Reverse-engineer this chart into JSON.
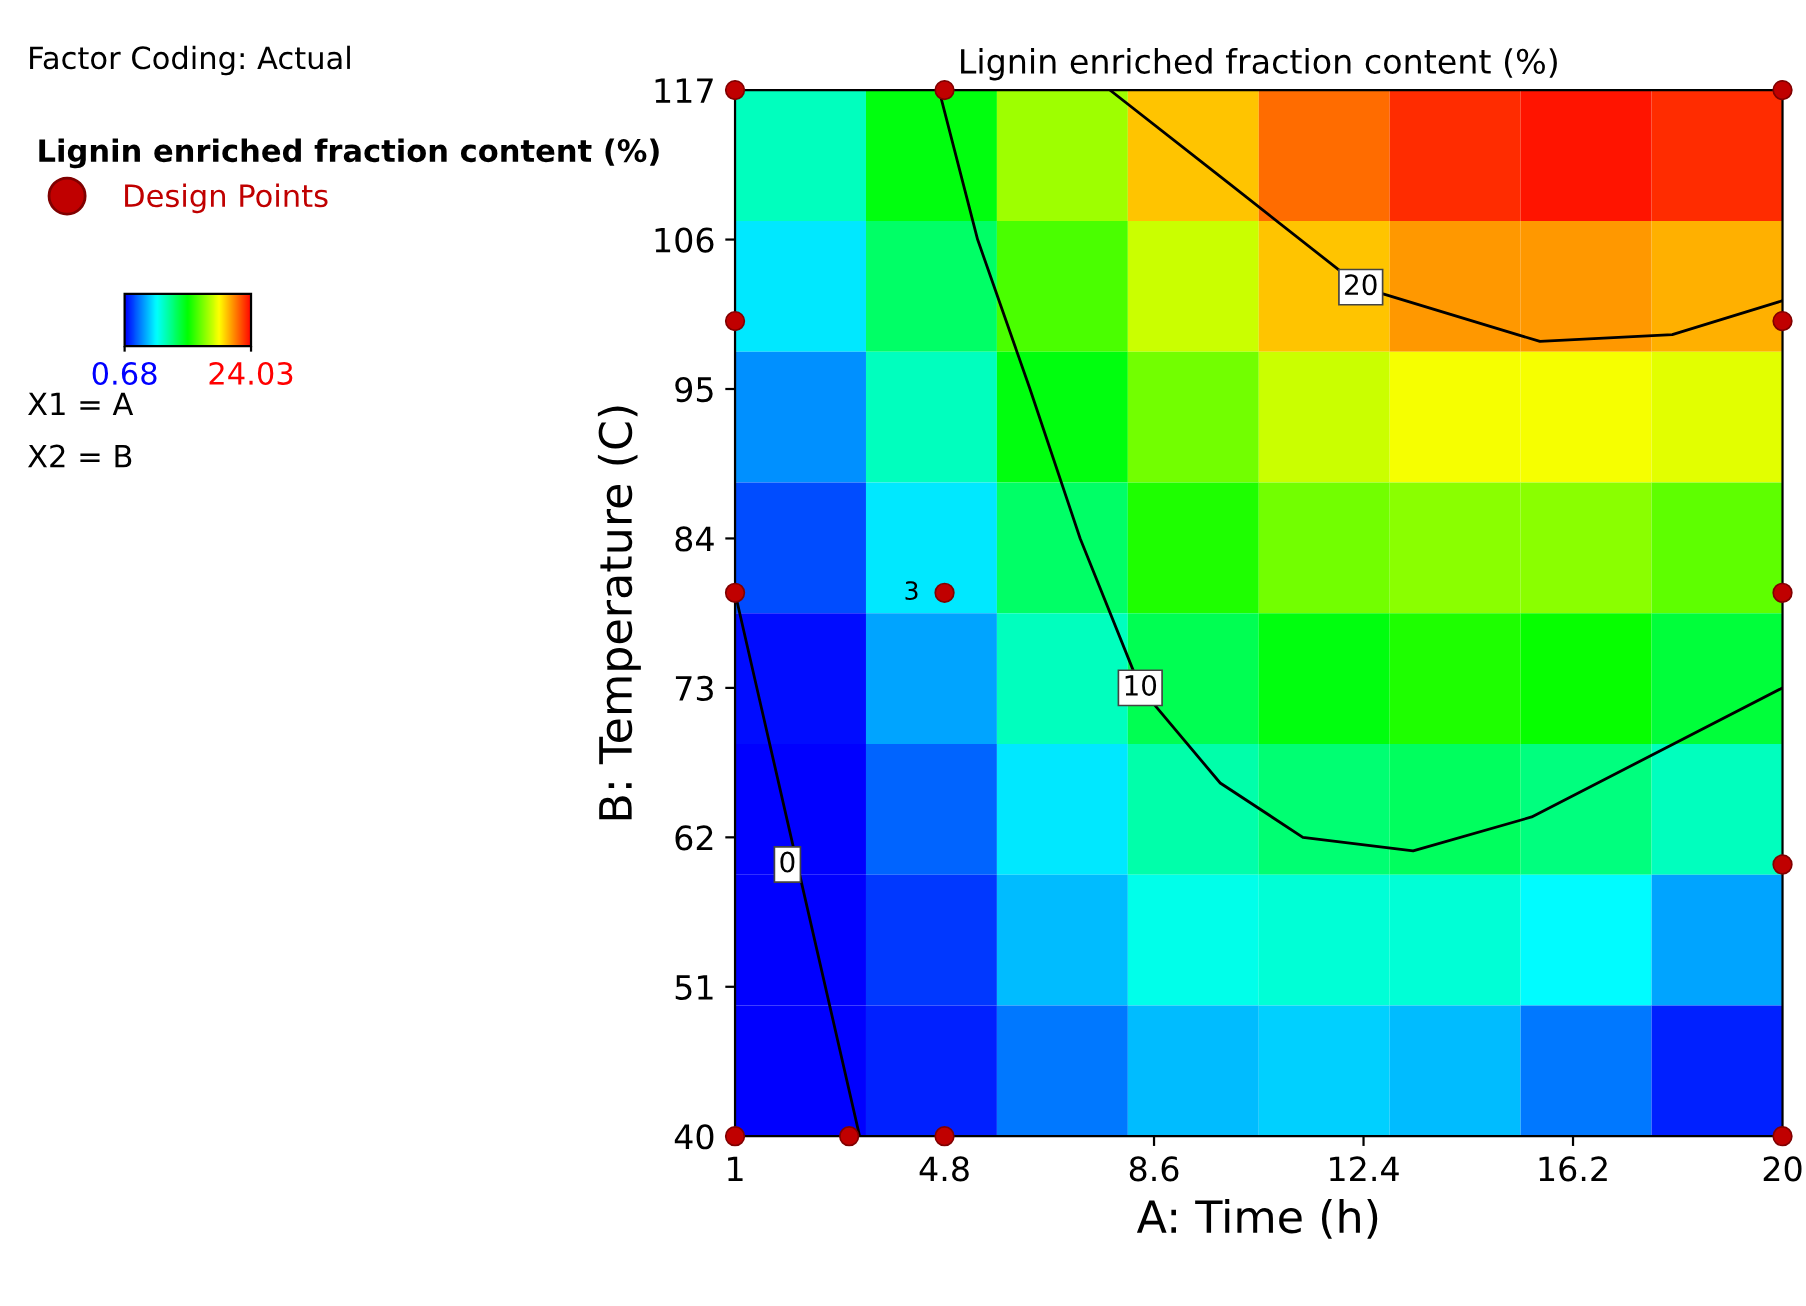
{
  "chart_data": {
    "type": "heatmap",
    "title": "Lignin enriched fraction content (%)",
    "xlabel": "A: Time (h)",
    "ylabel": "B: Temperature (C)",
    "legend_title": "Lignin enriched fraction content (%)",
    "legend": "top left",
    "xlim": [
      1,
      20
    ],
    "ylim": [
      40,
      117
    ],
    "xticks": [
      1,
      4.8,
      8.6,
      12.4,
      16.2,
      20
    ],
    "yticks": [
      40,
      51,
      62,
      73,
      84,
      95,
      106,
      117
    ],
    "grid": false,
    "clim": [
      0.68,
      24.03
    ],
    "cticks": [
      0.68,
      24.03
    ],
    "cells": [
      [
        8,
        12,
        16,
        19.5,
        21.5,
        23,
        23.5,
        23
      ],
      [
        6,
        10,
        14,
        17,
        19.5,
        20.5,
        20.5,
        20
      ],
      [
        4,
        8,
        12,
        15,
        17,
        18,
        18,
        17.5
      ],
      [
        2.5,
        6,
        10,
        13,
        15,
        15.5,
        15.5,
        14.5
      ],
      [
        1,
        4.5,
        8,
        10.5,
        12,
        13,
        12.5,
        11
      ],
      [
        0.7,
        3,
        6,
        8.5,
        9.8,
        10.2,
        9.5,
        8
      ],
      [
        0.7,
        2,
        5,
        7,
        7.5,
        7.5,
        6.5,
        4.5
      ],
      [
        0.7,
        1.5,
        3.5,
        5,
        5.5,
        5,
        3.5,
        1.5
      ]
    ],
    "series": [
      {
        "type": "line",
        "color": "#000000",
        "x": [
          1,
          3.26
        ],
        "values": [
          80,
          40
        ]
      },
      {
        "type": "line",
        "color": "#000000",
        "x": [
          4.7,
          5.4,
          6.35,
          7.26,
          8.35,
          9.8,
          11.3,
          13.3,
          15.45,
          20
        ],
        "values": [
          117,
          106,
          95,
          84,
          73,
          66,
          62,
          61,
          63.5,
          73
        ]
      },
      {
        "type": "line",
        "color": "#000000",
        "x": [
          7.8,
          10.0,
          12.35,
          15.6,
          18,
          20
        ],
        "values": [
          117,
          110,
          102.5,
          98.5,
          99,
          101.5
        ]
      },
      {
        "type": "scatter",
        "name": "Design Points",
        "color": "#c00000",
        "marker": "circle",
        "x": [
          1,
          4.8,
          20,
          1,
          20,
          1,
          4.8,
          20,
          20,
          1,
          3.07,
          4.8,
          20
        ],
        "values": [
          117,
          117,
          117,
          100,
          100,
          80,
          80,
          80,
          60,
          40,
          40,
          40,
          40
        ]
      }
    ],
    "annotations": [
      "Factor Coding: Actual",
      "X1 = A",
      "X2 = B",
      {
        "text": "0",
        "x": 1.95,
        "y": 60
      },
      {
        "text": "10",
        "x": 8.35,
        "y": 73
      },
      {
        "text": "20",
        "x": 12.35,
        "y": 102.5
      },
      {
        "text": "3",
        "x": 4.8,
        "y": 80
      }
    ]
  }
}
